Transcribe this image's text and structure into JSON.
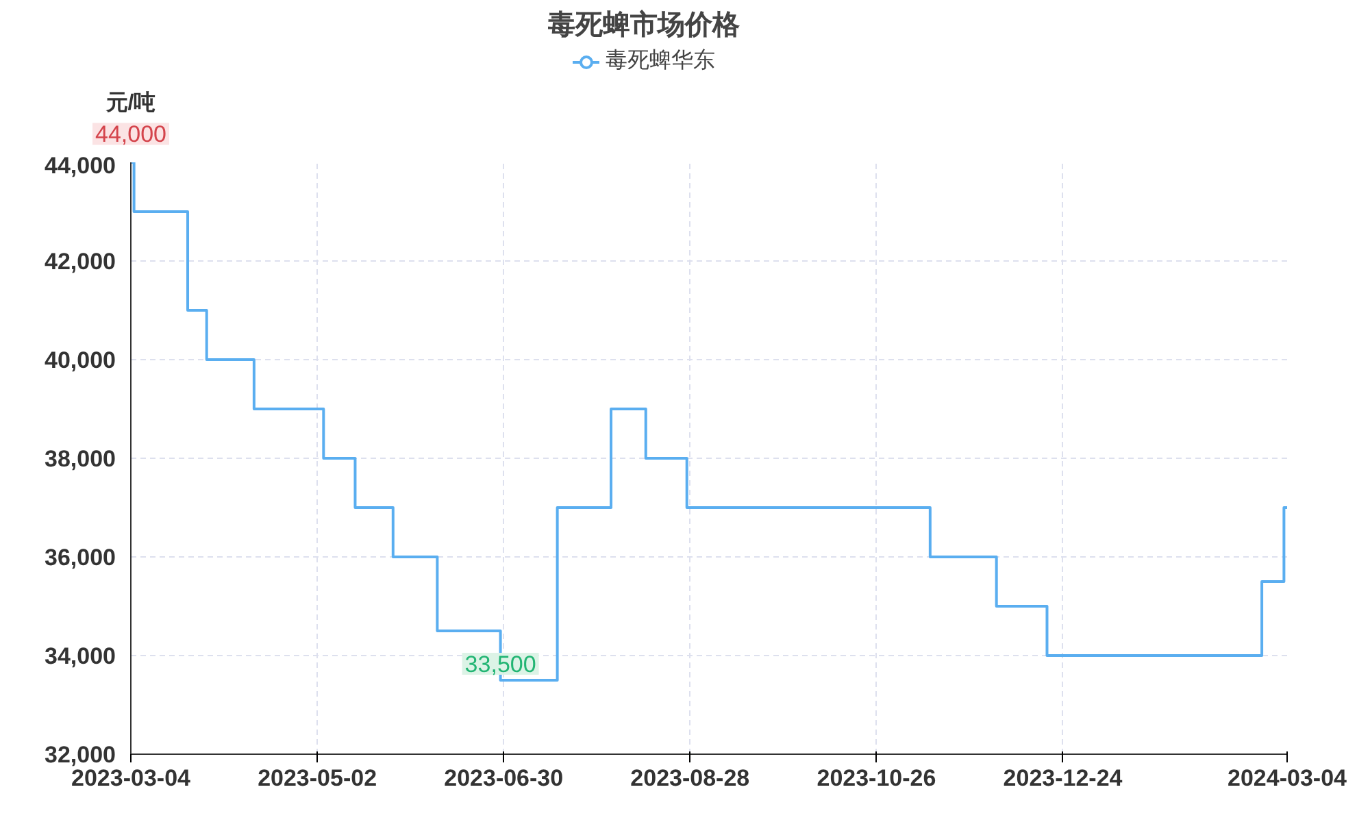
{
  "chart_data": {
    "type": "step",
    "title": "毒死蜱市场价格",
    "ylabel": "元/吨",
    "series": [
      {
        "name": "毒死蜱华东",
        "color": "#5aaef0",
        "x": [
          "2023-03-04",
          "2023-03-05",
          "2023-03-22",
          "2023-03-28",
          "2023-04-12",
          "2023-05-04",
          "2023-05-14",
          "2023-05-26",
          "2023-06-09",
          "2023-06-29",
          "2023-07-17",
          "2023-08-03",
          "2023-08-14",
          "2023-08-27",
          "2023-11-12",
          "2023-12-03",
          "2023-12-19",
          "2024-02-25",
          "2024-03-03",
          "2024-03-04"
        ],
        "values": [
          44000,
          43000,
          41000,
          40000,
          39000,
          38000,
          37000,
          36000,
          34500,
          33500,
          37000,
          39000,
          38000,
          37000,
          36000,
          35000,
          34000,
          35500,
          37000,
          37000
        ]
      }
    ],
    "xlim": [
      "2023-03-04",
      "2024-03-04"
    ],
    "xticks": [
      "2023-03-04",
      "2023-05-02",
      "2023-06-30",
      "2023-08-28",
      "2023-10-26",
      "2023-12-24",
      "2024-03-04"
    ],
    "ylim": [
      32000,
      44000
    ],
    "yticks": [
      {
        "value": 32000,
        "label": "32,000"
      },
      {
        "value": 34000,
        "label": "34,000"
      },
      {
        "value": 36000,
        "label": "36,000"
      },
      {
        "value": 38000,
        "label": "38,000"
      },
      {
        "value": 40000,
        "label": "40,000"
      },
      {
        "value": 42000,
        "label": "42,000"
      },
      {
        "value": 44000,
        "label": "44,000"
      }
    ],
    "annotations": [
      {
        "text": "44,000",
        "x": "2023-03-04",
        "y": 44000
      },
      {
        "text": "33,500",
        "x": "2023-06-29",
        "y": 33500
      }
    ],
    "grid": true,
    "line_style": "solid",
    "legend": "top"
  }
}
